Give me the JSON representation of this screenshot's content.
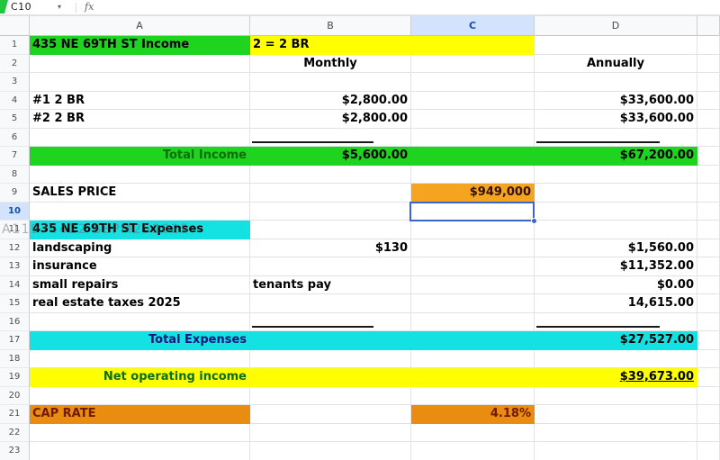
{
  "formula_bar": {
    "cell_reference": "C10",
    "caret_icon": "▾",
    "fx_label": "fx"
  },
  "column_headers": [
    "A",
    "B",
    "C",
    "D"
  ],
  "row_numbers": [
    "1",
    "2",
    "3",
    "4",
    "5",
    "6",
    "7",
    "8",
    "9",
    "10",
    "11",
    "12",
    "13",
    "14",
    "15",
    "16",
    "17",
    "18",
    "19",
    "20",
    "21",
    "22",
    "23"
  ],
  "selection": {
    "cell": "C10"
  },
  "watermark": "A11974422 SEPM252025",
  "sheet": {
    "income_title": "435 NE 69TH ST Income",
    "unit_note": "2 = 2 BR",
    "monthly_header": "Monthly",
    "annually_header": "Annually",
    "unit1_label": "#1 2 BR",
    "unit1_monthly": "$2,800.00",
    "unit1_annual": "$33,600.00",
    "unit2_label": "#2 2 BR",
    "unit2_monthly": "$2,800.00",
    "unit2_annual": "$33,600.00",
    "total_income_label": "Total Income",
    "total_income_monthly": "$5,600.00",
    "total_income_annual": "$67,200.00",
    "sales_price_label": "SALES PRICE",
    "sales_price_value": "$949,000",
    "expenses_title": "435 NE 69TH ST Expenses",
    "landscaping_label": "landscaping",
    "landscaping_monthly": "$130",
    "landscaping_annual": "$1,560.00",
    "insurance_label": "insurance",
    "insurance_annual": "$11,352.00",
    "small_repairs_label": "small repairs",
    "small_repairs_note": "tenants pay",
    "small_repairs_annual": "$0.00",
    "taxes_label": "real estate taxes 2025",
    "taxes_annual": "14,615.00",
    "total_expenses_label": "Total Expenses",
    "total_expenses_annual": "$27,527.00",
    "noi_label": "Net operating income",
    "noi_annual": "$39,673.00",
    "cap_rate_label": "CAP RATE",
    "cap_rate_value": "4.18%"
  },
  "colors": {
    "fill_green": "#1fd41f",
    "fill_yellow": "#ffff00",
    "fill_cyan": "#14e2e2",
    "fill_orange_sales": "#f5a41f",
    "fill_orange_cap": "#ea8c0f",
    "selection_blue": "#3a66c8",
    "header_highlight": "#d3e3fd"
  }
}
